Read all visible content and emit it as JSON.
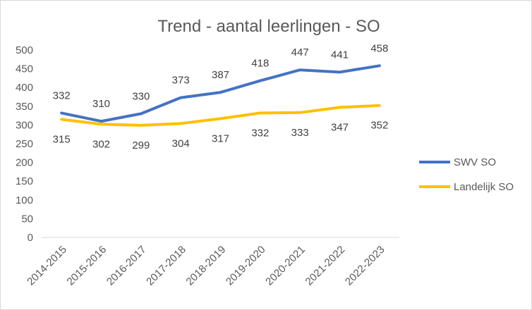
{
  "chart_data": {
    "type": "line",
    "title": "Trend - aantal leerlingen - SO",
    "xlabel": "",
    "ylabel": "",
    "categories": [
      "2014-2015",
      "2015-2016",
      "2016-2017",
      "2017-2018",
      "2018-2019",
      "2019-2020",
      "2020-2021",
      "2021-2022",
      "2022-2023"
    ],
    "ylim": [
      0,
      500
    ],
    "yticks": [
      0,
      50,
      100,
      150,
      200,
      250,
      300,
      350,
      400,
      450,
      500
    ],
    "grid": false,
    "legend_position": "right",
    "series": [
      {
        "name": "SWV SO",
        "color": "#4472C4",
        "values": [
          332,
          310,
          330,
          373,
          387,
          418,
          447,
          441,
          458
        ],
        "label_position": "above"
      },
      {
        "name": "Landelijk SO",
        "color": "#FFC000",
        "values": [
          315,
          302,
          299,
          304,
          317,
          332,
          333,
          347,
          352
        ],
        "label_position": "below"
      }
    ]
  }
}
